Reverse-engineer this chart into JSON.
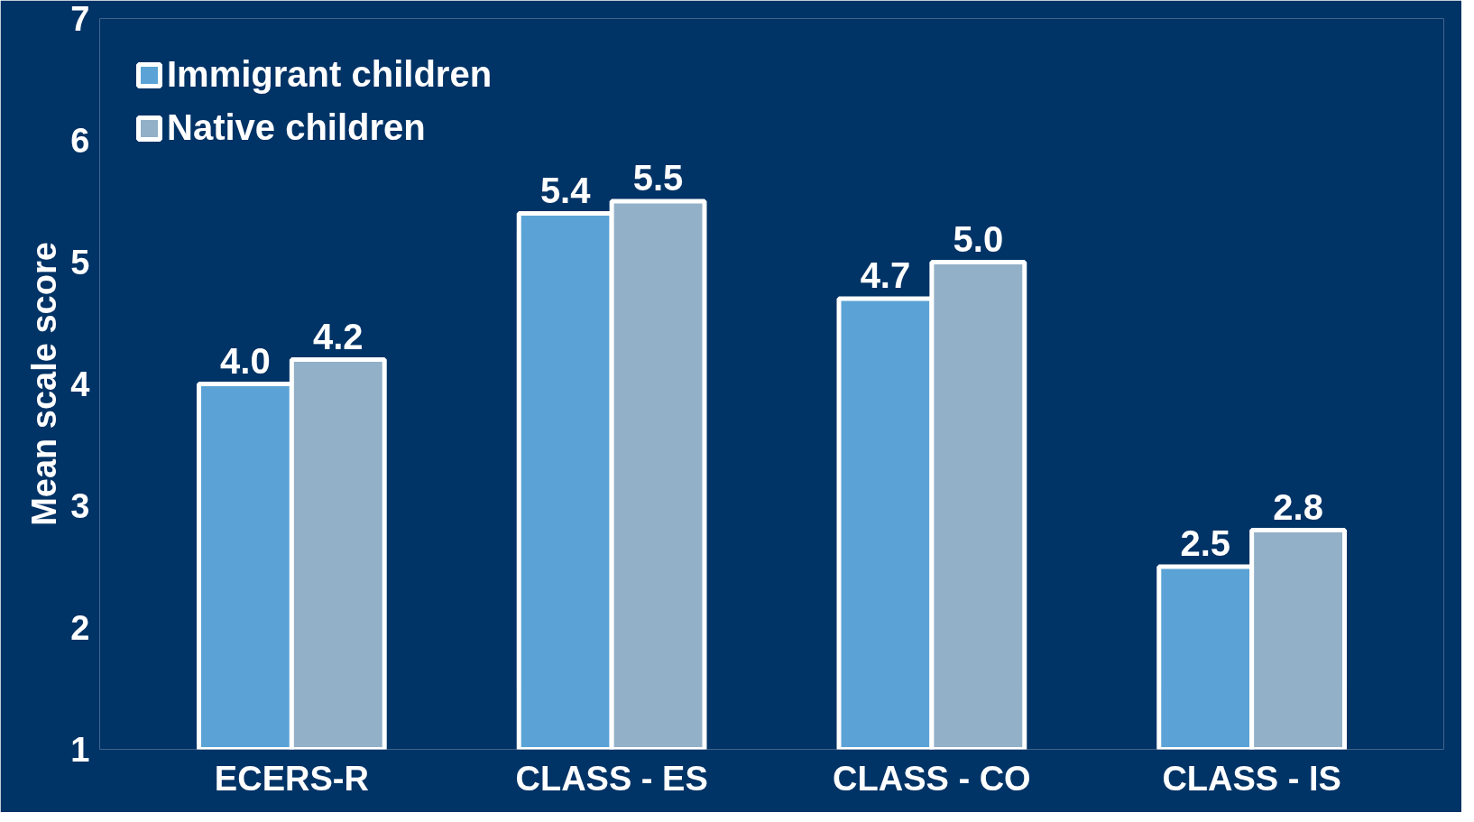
{
  "chart_data": {
    "type": "bar",
    "ylabel": "Mean scale score",
    "categories": [
      "ECERS-R",
      "CLASS - ES",
      "CLASS - CO",
      "CLASS - IS"
    ],
    "series": [
      {
        "name": "Immigrant children",
        "color": "#5ba3d6",
        "values": [
          4.0,
          5.4,
          4.7,
          2.5
        ],
        "value_labels": [
          "4.0",
          "5.4",
          "4.7",
          "2.5"
        ]
      },
      {
        "name": "Native children",
        "color": "#92b0c8",
        "values": [
          4.2,
          5.5,
          5.0,
          2.8
        ],
        "value_labels": [
          "4.2",
          "5.5",
          "5.0",
          "2.8"
        ]
      }
    ],
    "ylim": [
      1,
      7
    ],
    "yticks": [
      1,
      2,
      3,
      4,
      5,
      6,
      7
    ],
    "grid": false,
    "legend": "top left"
  }
}
